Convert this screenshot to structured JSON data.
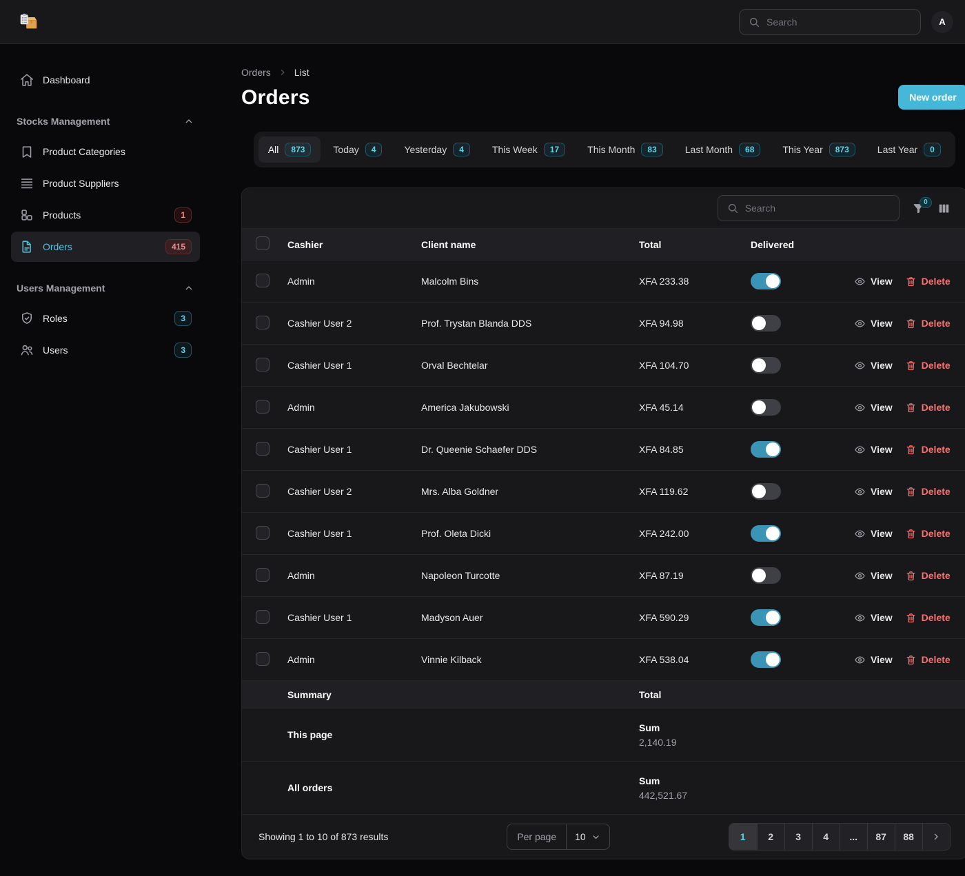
{
  "topbar": {
    "search_placeholder": "Search",
    "avatar_initial": "A"
  },
  "sidebar": {
    "items_top": [
      {
        "label": "Dashboard",
        "icon": "home-icon"
      }
    ],
    "sections": [
      {
        "title": "Stocks Management",
        "items": [
          {
            "label": "Product Categories",
            "icon": "bookmark-icon"
          },
          {
            "label": "Product Suppliers",
            "icon": "queue-list-icon"
          },
          {
            "label": "Products",
            "icon": "squares-icon",
            "badge": "1",
            "badge_style": "danger"
          },
          {
            "label": "Orders",
            "icon": "document-icon",
            "badge": "415",
            "badge_style": "danger",
            "active": true
          }
        ]
      },
      {
        "title": "Users Management",
        "items": [
          {
            "label": "Roles",
            "icon": "shield-check-icon",
            "badge": "3",
            "badge_style": "info"
          },
          {
            "label": "Users",
            "icon": "users-icon",
            "badge": "3",
            "badge_style": "info"
          }
        ]
      }
    ]
  },
  "page": {
    "breadcrumb": [
      "Orders",
      "List"
    ],
    "title": "Orders",
    "new_order_button": "New order"
  },
  "tabs": [
    {
      "label": "All",
      "count": "873",
      "active": true
    },
    {
      "label": "Today",
      "count": "4"
    },
    {
      "label": "Yesterday",
      "count": "4"
    },
    {
      "label": "This Week",
      "count": "17"
    },
    {
      "label": "This Month",
      "count": "83"
    },
    {
      "label": "Last Month",
      "count": "68"
    },
    {
      "label": "This Year",
      "count": "873"
    },
    {
      "label": "Last Year",
      "count": "0"
    }
  ],
  "table": {
    "search_placeholder": "Search",
    "filter_badge_count": "0",
    "columns": [
      "Cashier",
      "Client name",
      "Total",
      "Delivered"
    ],
    "row_actions": {
      "view": "View",
      "delete": "Delete"
    },
    "rows": [
      {
        "cashier": "Admin",
        "client_name": "Malcolm Bins",
        "total": "XFA 233.38",
        "delivered": true
      },
      {
        "cashier": "Cashier User 2",
        "client_name": "Prof. Trystan Blanda DDS",
        "total": "XFA 94.98",
        "delivered": false
      },
      {
        "cashier": "Cashier User 1",
        "client_name": "Orval Bechtelar",
        "total": "XFA 104.70",
        "delivered": false
      },
      {
        "cashier": "Admin",
        "client_name": "America Jakubowski",
        "total": "XFA 45.14",
        "delivered": false
      },
      {
        "cashier": "Cashier User 1",
        "client_name": "Dr. Queenie Schaefer DDS",
        "total": "XFA 84.85",
        "delivered": true
      },
      {
        "cashier": "Cashier User 2",
        "client_name": "Mrs. Alba Goldner",
        "total": "XFA 119.62",
        "delivered": false
      },
      {
        "cashier": "Cashier User 1",
        "client_name": "Prof. Oleta Dicki",
        "total": "XFA 242.00",
        "delivered": true
      },
      {
        "cashier": "Admin",
        "client_name": "Napoleon Turcotte",
        "total": "XFA 87.19",
        "delivered": false
      },
      {
        "cashier": "Cashier User 1",
        "client_name": "Madyson Auer",
        "total": "XFA 590.29",
        "delivered": true
      },
      {
        "cashier": "Admin",
        "client_name": "Vinnie Kilback",
        "total": "XFA 538.04",
        "delivered": true
      }
    ],
    "summary": {
      "title": "Summary",
      "total_header": "Total",
      "rows": [
        {
          "label": "This page",
          "sum_label": "Sum",
          "value": "2,140.19"
        },
        {
          "label": "All orders",
          "sum_label": "Sum",
          "value": "442,521.67"
        }
      ]
    },
    "pagination": {
      "showing_text": "Showing 1 to 10 of 873 results",
      "per_page_label": "Per page",
      "per_page_value": "10",
      "pages": [
        "1",
        "2",
        "3",
        "4",
        "...",
        "87",
        "88"
      ],
      "active_page": "1"
    }
  },
  "colors": {
    "accent": "#45b8d9",
    "active_link": "#4cc3e0",
    "toggle_on": "#3b93b5",
    "danger": "#f87171",
    "info": "#5ad6e8"
  }
}
